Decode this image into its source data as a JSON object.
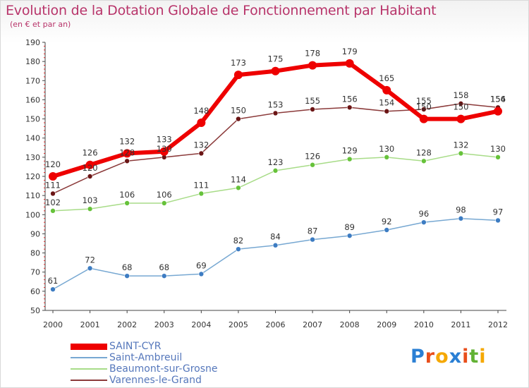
{
  "title": "Evolution de la Dotation Globale de Fonctionnement par Habitant",
  "subtitle": "(en € et par an)",
  "logo": {
    "text": "Proxiti",
    "letters": [
      "P",
      "r",
      "o",
      "x",
      "i",
      "t",
      "i"
    ],
    "colors": [
      "#2a7fd4",
      "#e84e1b",
      "#f5a800",
      "#2a7fd4",
      "#e84e1b",
      "#62b234",
      "#f5a800"
    ]
  },
  "chart_data": {
    "type": "line",
    "title": "Evolution de la Dotation Globale de Fonctionnement par Habitant",
    "subtitle": "(en € et par an)",
    "xlabel": "",
    "ylabel": "",
    "x": [
      "2000",
      "2001",
      "2002",
      "2003",
      "2004",
      "2005",
      "2006",
      "2007",
      "2008",
      "2009",
      "2010",
      "2011",
      "2012"
    ],
    "ylim": [
      50,
      190
    ],
    "yticks": [
      50,
      60,
      70,
      80,
      90,
      100,
      110,
      120,
      130,
      140,
      150,
      160,
      170,
      180,
      190
    ],
    "grid": false,
    "legend_position": "bottom-left",
    "series": [
      {
        "name": "SAINT-CYR",
        "color": "#ee0000",
        "marker_color": "#ee0000",
        "width": 6,
        "marker_r": 6,
        "values": [
          120,
          126,
          132,
          133,
          148,
          173,
          175,
          178,
          179,
          165,
          150,
          150,
          154
        ],
        "labels": [
          "120",
          "126",
          "132",
          "133",
          "148",
          "173",
          "175",
          "178",
          "179",
          "165",
          "150",
          "150",
          "154"
        ]
      },
      {
        "name": "Saint-Ambreuil",
        "color": "#77a8d2",
        "marker_color": "#3d7cc2",
        "width": 1.5,
        "marker_r": 3.5,
        "values": [
          61,
          72,
          68,
          68,
          69,
          82,
          84,
          87,
          89,
          92,
          96,
          98,
          97
        ],
        "labels": [
          "61",
          "72",
          "68",
          "68",
          "69",
          "82",
          "84",
          "87",
          "89",
          "92",
          "96",
          "98",
          "97"
        ]
      },
      {
        "name": "Beaumont-sur-Grosne",
        "color": "#a8dc88",
        "marker_color": "#66c23a",
        "width": 1.5,
        "marker_r": 3.5,
        "values": [
          102,
          103,
          106,
          106,
          111,
          114,
          123,
          126,
          129,
          130,
          128,
          132,
          130
        ],
        "labels": [
          "102",
          "103",
          "106",
          "106",
          "111",
          "114",
          "123",
          "126",
          "129",
          "130",
          "128",
          "132",
          "130"
        ]
      },
      {
        "name": "Varennes-le-Grand",
        "color": "#8b3a3a",
        "marker_color": "#6b1515",
        "width": 1.5,
        "marker_r": 3.5,
        "values": [
          111,
          120,
          128,
          130,
          132,
          150,
          153,
          155,
          156,
          154,
          155,
          158,
          156
        ],
        "labels": [
          "111",
          "120",
          "128",
          "130",
          "132",
          "150",
          "153",
          "155",
          "156",
          "154",
          "155",
          "158",
          "156"
        ]
      }
    ]
  }
}
